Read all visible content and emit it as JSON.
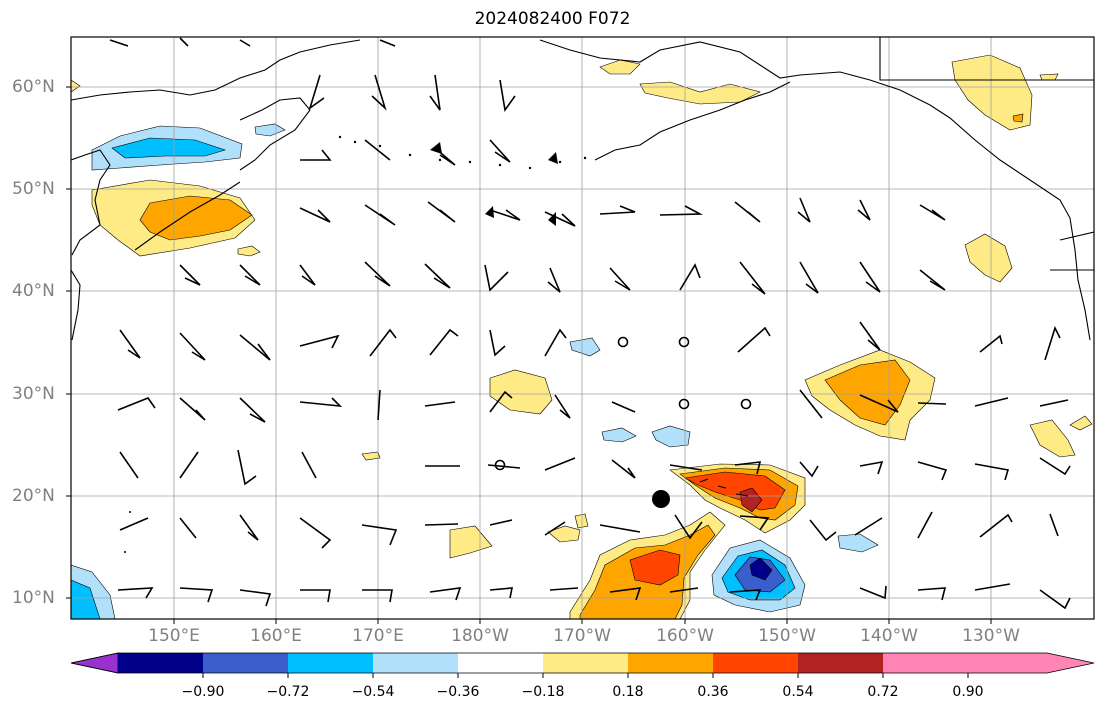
{
  "title": "2024082400 F072",
  "lat_labels": [
    "60°N",
    "50°N",
    "40°N",
    "30°N",
    "20°N",
    "10°N"
  ],
  "lon_labels": [
    "150°E",
    "160°E",
    "170°E",
    "180°W",
    "170°W",
    "160°W",
    "150°W",
    "140°W",
    "130°W"
  ],
  "colorbar": {
    "tick_labels": [
      "−0.90",
      "−0.72",
      "−0.54",
      "−0.36",
      "−0.18",
      "0.18",
      "0.36",
      "0.54",
      "0.72",
      "0.90"
    ],
    "colors": [
      "#9932cc",
      "#00008b",
      "#3a5fcd",
      "#00bfff",
      "#b0e0fa",
      "#ffffff",
      "#ffeb85",
      "#ffa500",
      "#ff4500",
      "#b22222",
      "#ff85b4"
    ]
  },
  "map": {
    "lat_range": [
      8,
      65
    ],
    "lon_range_east": [
      140,
      240
    ],
    "marker": {
      "lat": 19.7,
      "lon_east": 197.6
    },
    "calm_circles": [
      {
        "lat": 35,
        "lon_east": 195
      },
      {
        "lat": 35,
        "lon_east": 201
      },
      {
        "lat": 29,
        "lon_east": 201
      },
      {
        "lat": 29,
        "lon_east": 207
      },
      {
        "lat": 23,
        "lon_east": 183
      }
    ]
  }
}
